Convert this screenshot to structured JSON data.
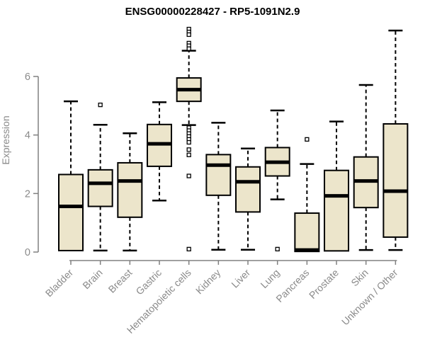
{
  "chart_data": {
    "type": "boxplot",
    "title": "ENSG00000228427 - RP5-1091N2.9",
    "ylabel": "Expression",
    "xlabel": "",
    "ylim": [
      0,
      6
    ],
    "yticks": [
      0,
      2,
      4,
      6
    ],
    "grid": false,
    "legend": "none",
    "categories": [
      "Bladder",
      "Brain",
      "Breast",
      "Gastric",
      "Hematopoietic cells",
      "Kidney",
      "Liver",
      "Lung",
      "Pancreas",
      "Prostate",
      "Skin",
      "Unknown / Other"
    ],
    "series": [
      {
        "name": "Bladder",
        "whisker_low": 0.05,
        "q1": 0.05,
        "median": 1.56,
        "q3": 2.65,
        "whisker_high": 5.15,
        "outliers": []
      },
      {
        "name": "Brain",
        "whisker_low": 0.05,
        "q1": 1.56,
        "median": 2.35,
        "q3": 2.81,
        "whisker_high": 4.35,
        "outliers": [
          5.03
        ]
      },
      {
        "name": "Breast",
        "whisker_low": 0.05,
        "q1": 1.19,
        "median": 2.43,
        "q3": 3.05,
        "whisker_high": 4.06,
        "outliers": []
      },
      {
        "name": "Gastric",
        "whisker_low": 1.76,
        "q1": 2.93,
        "median": 3.7,
        "q3": 4.36,
        "whisker_high": 5.12,
        "outliers": []
      },
      {
        "name": "Hematopoietic cells",
        "whisker_low": 4.34,
        "q1": 5.15,
        "median": 5.55,
        "q3": 5.95,
        "whisker_high": 6.88,
        "outliers": [
          7.62,
          7.52,
          7.43,
          7.14,
          7.05,
          6.95,
          4.25,
          4.15,
          4.05,
          3.95,
          3.85,
          3.75,
          3.5,
          3.32,
          2.6,
          0.1
        ]
      },
      {
        "name": "Kidney",
        "whisker_low": 0.08,
        "q1": 1.94,
        "median": 2.97,
        "q3": 3.33,
        "whisker_high": 4.42,
        "outliers": []
      },
      {
        "name": "Liver",
        "whisker_low": 0.08,
        "q1": 1.37,
        "median": 2.4,
        "q3": 2.91,
        "whisker_high": 3.54,
        "outliers": []
      },
      {
        "name": "Lung",
        "whisker_low": 1.8,
        "q1": 2.6,
        "median": 3.07,
        "q3": 3.57,
        "whisker_high": 4.84,
        "outliers": [
          0.1
        ]
      },
      {
        "name": "Pancreas",
        "whisker_low": 0.02,
        "q1": 0.02,
        "median": 0.07,
        "q3": 1.33,
        "whisker_high": 3.01,
        "outliers": [
          3.85
        ]
      },
      {
        "name": "Prostate",
        "whisker_low": 0.02,
        "q1": 0.04,
        "median": 1.92,
        "q3": 2.79,
        "whisker_high": 4.46,
        "outliers": []
      },
      {
        "name": "Skin",
        "whisker_low": 0.07,
        "q1": 1.52,
        "median": 2.43,
        "q3": 3.25,
        "whisker_high": 5.71,
        "outliers": []
      },
      {
        "name": "Unknown / Other",
        "whisker_low": 0.07,
        "q1": 0.51,
        "median": 2.08,
        "q3": 4.38,
        "whisker_high": 7.57,
        "outliers": []
      }
    ],
    "colors": {
      "box_fill": "#ECE5CB",
      "box_stroke": "#000000",
      "median": "#000000",
      "whisker": "#000000",
      "axis": "#808080",
      "tick_label": "#8a8a8a",
      "title": "#000000"
    }
  }
}
